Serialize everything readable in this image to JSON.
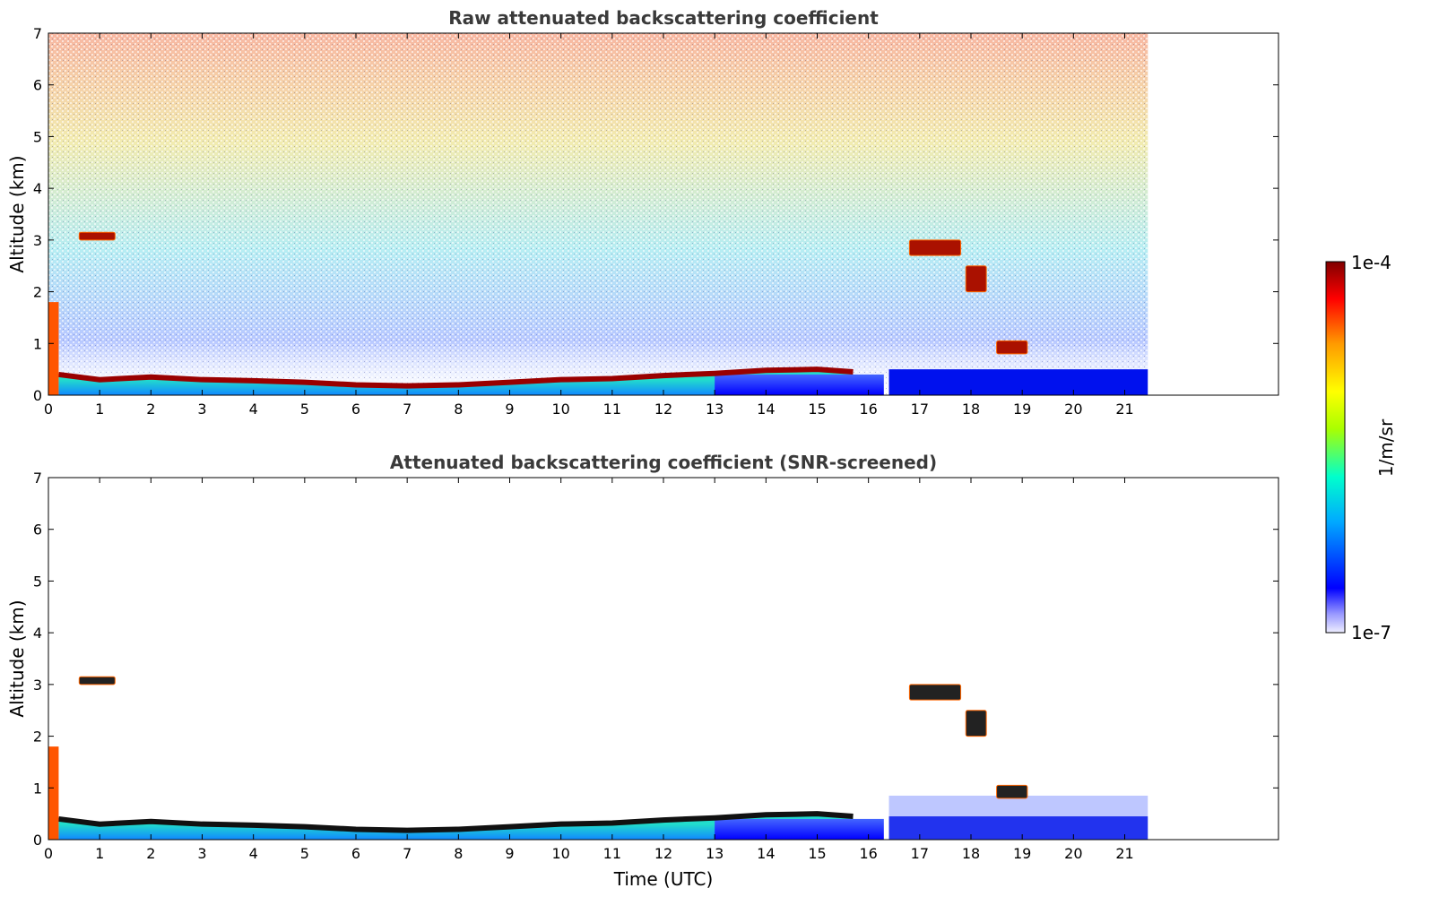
{
  "chart_data": [
    {
      "type": "heatmap",
      "title": "Raw attenuated backscattering coefficient",
      "xlabel": "",
      "ylabel": "Altitude (km)",
      "xlim": [
        0,
        24
      ],
      "ylim": [
        0,
        7
      ],
      "x_ticks": [
        0,
        1,
        2,
        3,
        4,
        5,
        6,
        7,
        8,
        9,
        10,
        11,
        12,
        13,
        14,
        15,
        16,
        17,
        18,
        19,
        20,
        21
      ],
      "y_ticks": [
        0,
        1,
        2,
        3,
        4,
        5,
        6,
        7
      ],
      "data_extent_hours": [
        0,
        21.45
      ],
      "boundary_layer_top_km": [
        {
          "t": 0.2,
          "z": 0.4
        },
        {
          "t": 1,
          "z": 0.3
        },
        {
          "t": 2,
          "z": 0.35
        },
        {
          "t": 3,
          "z": 0.3
        },
        {
          "t": 4,
          "z": 0.28
        },
        {
          "t": 5,
          "z": 0.25
        },
        {
          "t": 6,
          "z": 0.2
        },
        {
          "t": 7,
          "z": 0.18
        },
        {
          "t": 8,
          "z": 0.2
        },
        {
          "t": 9,
          "z": 0.25
        },
        {
          "t": 10,
          "z": 0.3
        },
        {
          "t": 11,
          "z": 0.32
        },
        {
          "t": 12,
          "z": 0.38
        },
        {
          "t": 13,
          "z": 0.42
        },
        {
          "t": 14,
          "z": 0.48
        },
        {
          "t": 15,
          "z": 0.5
        },
        {
          "t": 15.7,
          "z": 0.45
        }
      ],
      "cloud_layers": [
        {
          "t0": 0.6,
          "t1": 1.3,
          "z0": 3.0,
          "z1": 3.15
        },
        {
          "t0": 16.8,
          "t1": 17.8,
          "z0": 2.7,
          "z1": 3.0
        },
        {
          "t0": 17.9,
          "t1": 18.3,
          "z0": 2.0,
          "z1": 2.5
        },
        {
          "t0": 18.5,
          "t1": 19.1,
          "z0": 0.8,
          "z1": 1.05
        }
      ]
    },
    {
      "type": "heatmap",
      "title": "Attenuated backscattering coefficient (SNR-screened)",
      "xlabel": "Time (UTC)",
      "ylabel": "Altitude (km)",
      "xlim": [
        0,
        24
      ],
      "ylim": [
        0,
        7
      ],
      "x_ticks": [
        0,
        1,
        2,
        3,
        4,
        5,
        6,
        7,
        8,
        9,
        10,
        11,
        12,
        13,
        14,
        15,
        16,
        17,
        18,
        19,
        20,
        21
      ],
      "y_ticks": [
        0,
        1,
        2,
        3,
        4,
        5,
        6,
        7
      ],
      "data_extent_hours": [
        0,
        21.45
      ],
      "cloud_layers": [
        {
          "t0": 0.6,
          "t1": 1.3,
          "z0": 3.0,
          "z1": 3.15
        },
        {
          "t0": 16.8,
          "t1": 17.8,
          "z0": 2.7,
          "z1": 3.0
        },
        {
          "t0": 17.9,
          "t1": 18.3,
          "z0": 2.0,
          "z1": 2.5
        },
        {
          "t0": 18.5,
          "t1": 19.1,
          "z0": 0.8,
          "z1": 1.05
        }
      ]
    }
  ],
  "colorbar": {
    "label": "1/m/sr",
    "max_label": "1e-4",
    "min_label": "1e-7",
    "colormap": "jet",
    "range": [
      1e-07,
      0.0001
    ],
    "colors": [
      "#eeeeff",
      "#0000ff",
      "#00aaff",
      "#00ffcc",
      "#aaff00",
      "#ffff00",
      "#ff9900",
      "#ff0000",
      "#800000"
    ]
  }
}
